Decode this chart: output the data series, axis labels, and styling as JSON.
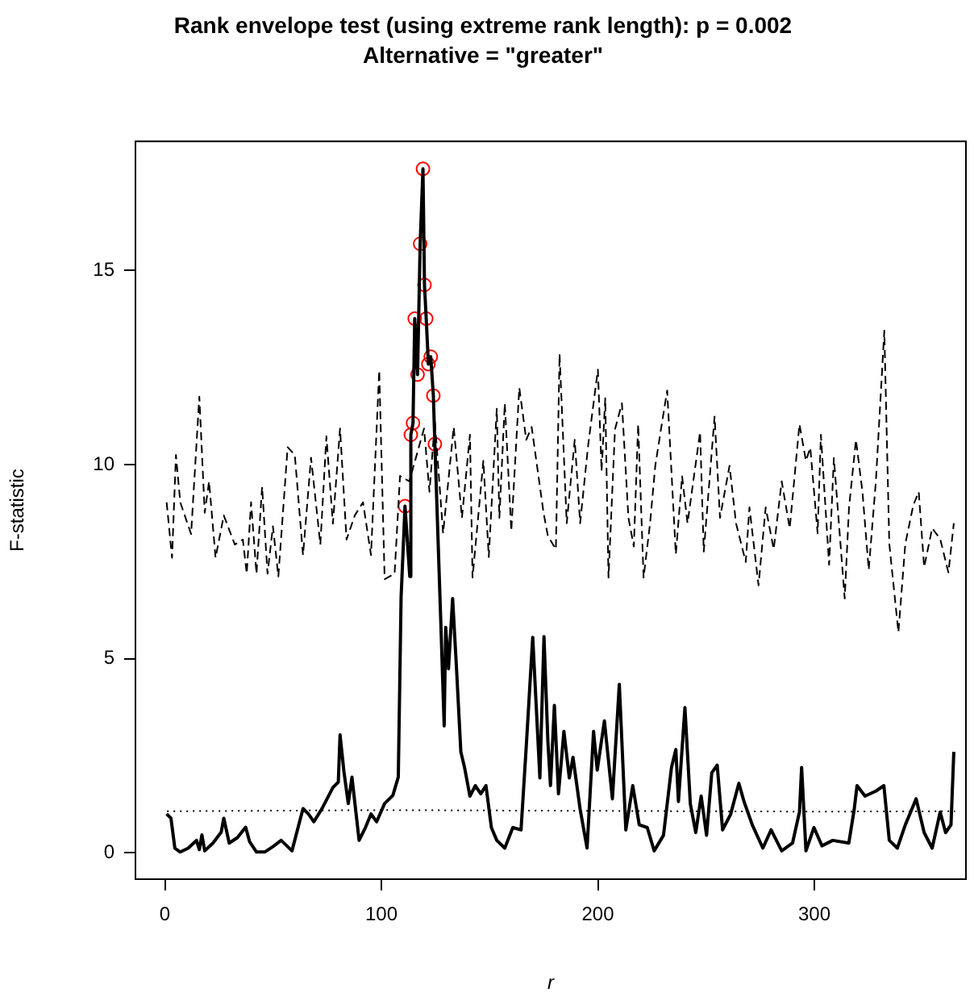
{
  "chart_data": {
    "type": "line",
    "title": "Rank envelope test (using extreme rank length): p = 0.002",
    "subtitle": "Alternative = \"greater\"",
    "xlabel": "r",
    "ylabel": "F-statistic",
    "xlim": [
      -13.6,
      370
    ],
    "xticks": [
      0,
      100,
      200,
      300
    ],
    "ylim": [
      -0.68,
      18.33
    ],
    "yticks": [
      0,
      5,
      10,
      15
    ],
    "grid": false,
    "legend": false,
    "series": [
      {
        "line_style": "dotted",
        "marker": "none",
        "color": "#000000",
        "x": [
          1,
          100,
          200,
          300,
          365
        ],
        "values": [
          1.07,
          1.1,
          1.08,
          1.06,
          1.07
        ]
      },
      {
        "line_style": "dashed",
        "marker": "none",
        "color": "#000000",
        "x": [
          0.8,
          3.3,
          5.1,
          7.1,
          12.1,
          15.9,
          18.4,
          20.4,
          23.4,
          27.2,
          32.3,
          36,
          37.8,
          39.8,
          42.3,
          44.9,
          47.4,
          49.9,
          52.4,
          56.7,
          60,
          63.8,
          67.5,
          71.8,
          74.6,
          77.6,
          80.9,
          83.9,
          87.7,
          91.5,
          95.2,
          99,
          101.5,
          106.1,
          108.6,
          112.9,
          119.7,
          122.2,
          124.7,
          128.5,
          133.4,
          137.2,
          140.9,
          142.1,
          147.1,
          149.6,
          153.3,
          154.5,
          157,
          160,
          163.7,
          166.9,
          169.4,
          174.9,
          176.9,
          180.6,
          182.3,
          185.6,
          189.3,
          191.8,
          195.5,
          200,
          201.7,
          203.4,
          204.9,
          207.9,
          211.1,
          214.1,
          216.6,
          218.6,
          221.1,
          224.1,
          226.5,
          229.5,
          232,
          236,
          238.9,
          241.4,
          247.2,
          248.9,
          253.9,
          256.4,
          260.8,
          263.8,
          268.3,
          270,
          274.2,
          277.5,
          281.2,
          284.9,
          288.6,
          293.1,
          296.1,
          298.1,
          301.5,
          303,
          306.8,
          309,
          314,
          316,
          319.2,
          322.2,
          325.1,
          328.4,
          332.3,
          334.6,
          338.8,
          342,
          345.7,
          348.2,
          350.7,
          354.4,
          358.1,
          361.9,
          364.4
        ],
        "values": [
          9.03,
          7.6,
          10.25,
          9.03,
          8.21,
          11.75,
          8.76,
          9.57,
          7.6,
          8.69,
          7.94,
          8.07,
          7.19,
          9.03,
          7.19,
          9.43,
          7.19,
          8.41,
          7.12,
          10.45,
          10.25,
          7.67,
          10.18,
          7.94,
          10.73,
          8.48,
          10.93,
          8.07,
          8.69,
          9.03,
          7.67,
          12.43,
          7.05,
          7.19,
          9.71,
          9.57,
          10.93,
          9.3,
          11.11,
          8.23,
          10.97,
          8.63,
          10.77,
          7.09,
          10.1,
          7.62,
          11.44,
          8.63,
          11.58,
          8.29,
          11.98,
          10.64,
          10.97,
          8.76,
          8.16,
          7.82,
          12.85,
          8.49,
          10.64,
          8.49,
          10.5,
          12.45,
          9.83,
          11.71,
          7.09,
          10.91,
          11.58,
          8.63,
          7.89,
          11.04,
          7.09,
          8.49,
          9.97,
          11.04,
          11.91,
          7.69,
          9.7,
          8.49,
          10.84,
          7.76,
          11.24,
          8.63,
          9.97,
          8.49,
          7.49,
          8.9,
          6.89,
          8.9,
          7.82,
          9.57,
          8.36,
          11.04,
          10.1,
          10.44,
          8.23,
          10.77,
          7.42,
          10.17,
          6.55,
          8.9,
          10.64,
          9.3,
          7.29,
          9.57,
          13.45,
          7.96,
          5.68,
          7.96,
          8.96,
          9.3,
          7.36,
          8.36,
          8.09,
          7.22,
          8.49
        ]
      },
      {
        "line_style": "solid",
        "marker": "none",
        "color": "#000000",
        "x": [
          0.8,
          2.8,
          4.6,
          7.1,
          10.8,
          14.6,
          15.9,
          17.1,
          18.4,
          22.2,
          26,
          27.2,
          29.7,
          33.5,
          37.3,
          39.1,
          42.3,
          46.1,
          49.9,
          53.7,
          58.7,
          63.8,
          66.3,
          68.8,
          72.6,
          75.1,
          77.6,
          80.1,
          80.9,
          82.7,
          84.7,
          86.4,
          89.7,
          92.7,
          95.2,
          97.8,
          101.5,
          105.3,
          107.8,
          109.1,
          110.9,
          113.1,
          113.6,
          114.6,
          115.4,
          116.7,
          117.9,
          119.2,
          119.9,
          120.7,
          121.7,
          122.8,
          124,
          124.7,
          127.2,
          129,
          129.7,
          131,
          132.9,
          134.7,
          136.7,
          138.4,
          140.9,
          143.4,
          145.9,
          148.3,
          150.8,
          153.3,
          157,
          160.7,
          164.5,
          166.9,
          169.9,
          173.2,
          175.1,
          176.9,
          178.1,
          179.9,
          181.8,
          184.3,
          186.8,
          188.5,
          191.8,
          195,
          198,
          199.7,
          203,
          206.7,
          209.9,
          212.9,
          216.1,
          219.1,
          222.8,
          226,
          230.3,
          234,
          236,
          237.2,
          240.2,
          242.7,
          245.2,
          247.7,
          250.2,
          252.6,
          255.1,
          257.6,
          261.3,
          265.1,
          267.5,
          271.3,
          276.2,
          280,
          284.9,
          289.9,
          293.1,
          294.1,
          296.1,
          299.8,
          303.5,
          308.5,
          315.9,
          318.4,
          319.7,
          323.4,
          328.4,
          332.1,
          334.6,
          338.3,
          342,
          347,
          350.7,
          354.4,
          358.1,
          360.6,
          363.1,
          364.4
        ],
        "values": [
          1,
          0.89,
          0.12,
          0.02,
          0.12,
          0.32,
          0.08,
          0.46,
          0.05,
          0.25,
          0.53,
          0.89,
          0.25,
          0.39,
          0.66,
          0.29,
          0.02,
          0.02,
          0.16,
          0.32,
          0.05,
          1.14,
          1,
          0.8,
          1.14,
          1.41,
          1.68,
          1.82,
          3.04,
          2.09,
          1.27,
          1.95,
          0.32,
          0.66,
          1,
          0.8,
          1.27,
          1.48,
          1.95,
          6.58,
          8.93,
          7.12,
          10.77,
          11.07,
          13.76,
          12.32,
          15.69,
          17.62,
          14.63,
          13.76,
          12.59,
          12.78,
          11.78,
          10.53,
          6.35,
          3.27,
          5.81,
          4.74,
          6.55,
          4.74,
          2.6,
          2.2,
          1.46,
          1.73,
          1.52,
          1.73,
          0.65,
          0.32,
          0.12,
          0.65,
          0.59,
          2.73,
          5.55,
          1.93,
          5.57,
          2.87,
          1.73,
          3.8,
          1.52,
          3.13,
          1.93,
          2.46,
          1.12,
          0.12,
          3.13,
          2.13,
          3.4,
          1.39,
          4.34,
          0.59,
          1.73,
          0.72,
          0.65,
          0.05,
          0.45,
          2.2,
          2.66,
          1.32,
          3.74,
          1.26,
          0.52,
          1.46,
          0.45,
          2.06,
          2.26,
          0.59,
          0.99,
          1.79,
          1.32,
          0.72,
          0.12,
          0.59,
          0.05,
          0.25,
          1.05,
          2.2,
          0.05,
          0.65,
          0.18,
          0.32,
          0.25,
          1.12,
          1.73,
          1.46,
          1.59,
          1.73,
          0.32,
          0.12,
          0.72,
          1.39,
          0.52,
          0.12,
          1.05,
          0.52,
          0.72,
          2.6
        ]
      },
      {
        "type": "scatter",
        "marker": "circle",
        "color": "#ff0000",
        "x": [
          110.9,
          113.6,
          114.6,
          115.4,
          116.7,
          117.9,
          119.2,
          119.9,
          120.7,
          121.7,
          122.8,
          124,
          124.7
        ],
        "values": [
          8.93,
          10.77,
          11.07,
          13.76,
          12.32,
          15.69,
          17.62,
          14.63,
          13.76,
          12.59,
          12.78,
          11.78,
          10.53
        ]
      }
    ]
  }
}
